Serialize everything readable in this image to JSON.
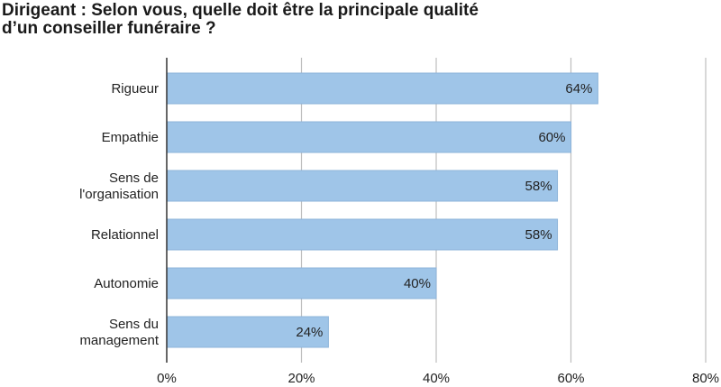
{
  "title_lines": [
    "Dirigeant : Selon vous, quelle doit être la principale qualité",
    "d’un conseiller funéraire ?"
  ],
  "colors": {
    "bar": "#9fc5e8",
    "bar_stroke": "#8db4da",
    "grid": "#bdbdbd",
    "axis": "#333333",
    "text": "#222222"
  },
  "chart_data": {
    "type": "bar",
    "orientation": "horizontal",
    "title": "Dirigeant : Selon vous, quelle doit être la principale qualité d’un conseiller funéraire ?",
    "categories": [
      [
        "Rigueur"
      ],
      [
        "Empathie"
      ],
      [
        "Sens de",
        "l'organisation"
      ],
      [
        "Relationnel"
      ],
      [
        "Autonomie"
      ],
      [
        "Sens du",
        "management"
      ]
    ],
    "values": [
      64,
      60,
      58,
      58,
      40,
      24
    ],
    "value_labels": [
      "64%",
      "60%",
      "58%",
      "58%",
      "40%",
      "24%"
    ],
    "x_ticks": [
      0,
      20,
      40,
      60,
      80
    ],
    "x_tick_labels": [
      "0%",
      "20%",
      "40%",
      "60%",
      "80%"
    ],
    "xlim": [
      0,
      80
    ],
    "xlabel": "",
    "ylabel": "",
    "grid": "vertical",
    "legend": "none"
  }
}
